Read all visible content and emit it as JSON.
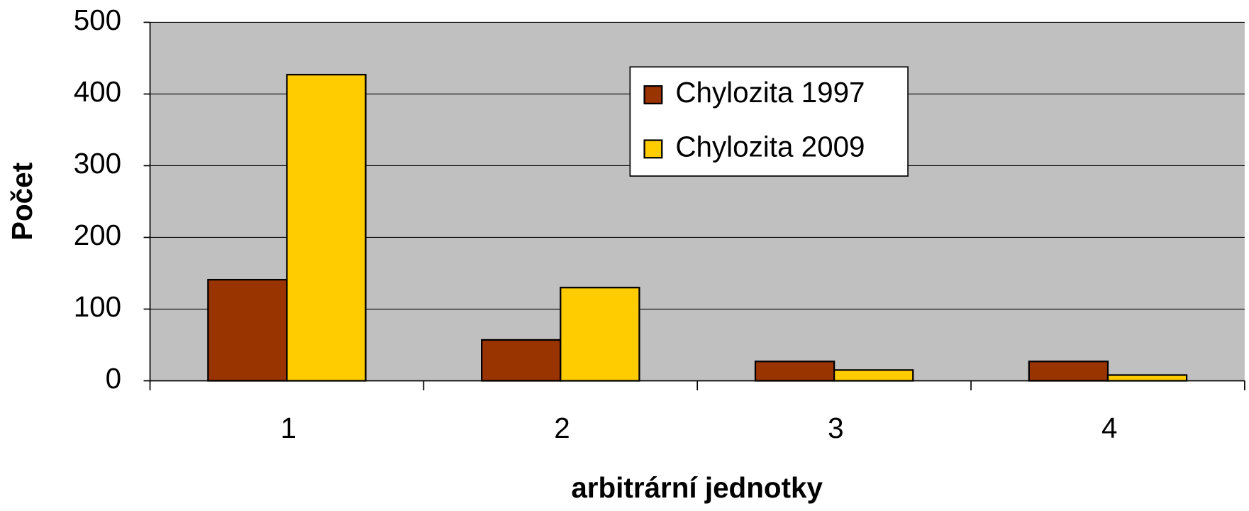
{
  "chart_data": {
    "type": "bar",
    "xlabel": "arbitrární jednotky",
    "ylabel": "Počet",
    "categories": [
      "1",
      "2",
      "3",
      "4"
    ],
    "series": [
      {
        "name": "Chylozita 1997",
        "color": "#993300",
        "values": [
          141,
          57,
          27,
          27
        ]
      },
      {
        "name": "Chylozita 2009",
        "color": "#ffcc00",
        "values": [
          427,
          130,
          15,
          8
        ]
      }
    ],
    "ylim": [
      0,
      500
    ],
    "yticks": [
      0,
      100,
      200,
      300,
      400,
      500
    ],
    "grid": true,
    "legend": "upper center"
  }
}
